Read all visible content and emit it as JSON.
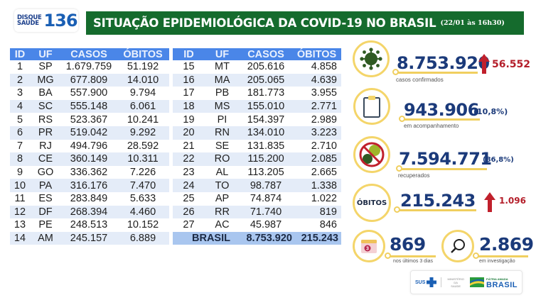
{
  "header": {
    "hotline_top": "DISQUE",
    "hotline_bottom": "SAÚDE",
    "hotline_number": "136",
    "title": "SITUAÇÃO EPIDEMIOLÓGICA DA COVID-19 NO BRASIL",
    "date": "(22/01 às 16h30)",
    "title_bg_color": "#156b2d"
  },
  "table": {
    "columns": [
      "ID",
      "UF",
      "CASOS",
      "ÓBITOS"
    ],
    "header_color": "#4a86e8",
    "left_rows": [
      {
        "id": "1",
        "uf": "SP",
        "casos": "1.679.759",
        "obitos": "51.192"
      },
      {
        "id": "2",
        "uf": "MG",
        "casos": "677.809",
        "obitos": "14.010"
      },
      {
        "id": "3",
        "uf": "BA",
        "casos": "557.900",
        "obitos": "9.794"
      },
      {
        "id": "4",
        "uf": "SC",
        "casos": "555.148",
        "obitos": "6.061"
      },
      {
        "id": "5",
        "uf": "RS",
        "casos": "523.367",
        "obitos": "10.241"
      },
      {
        "id": "6",
        "uf": "PR",
        "casos": "519.042",
        "obitos": "9.292"
      },
      {
        "id": "7",
        "uf": "RJ",
        "casos": "494.796",
        "obitos": "28.592"
      },
      {
        "id": "8",
        "uf": "CE",
        "casos": "360.149",
        "obitos": "10.311"
      },
      {
        "id": "9",
        "uf": "GO",
        "casos": "336.362",
        "obitos": "7.226"
      },
      {
        "id": "10",
        "uf": "PA",
        "casos": "316.176",
        "obitos": "7.470"
      },
      {
        "id": "11",
        "uf": "ES",
        "casos": "283.849",
        "obitos": "5.633"
      },
      {
        "id": "12",
        "uf": "DF",
        "casos": "268.394",
        "obitos": "4.460"
      },
      {
        "id": "13",
        "uf": "PE",
        "casos": "248.513",
        "obitos": "10.152"
      },
      {
        "id": "14",
        "uf": "AM",
        "casos": "245.157",
        "obitos": "6.889"
      }
    ],
    "right_rows": [
      {
        "id": "15",
        "uf": "MT",
        "casos": "205.616",
        "obitos": "4.858"
      },
      {
        "id": "16",
        "uf": "MA",
        "casos": "205.065",
        "obitos": "4.639"
      },
      {
        "id": "17",
        "uf": "PB",
        "casos": "181.773",
        "obitos": "3.955"
      },
      {
        "id": "18",
        "uf": "MS",
        "casos": "155.010",
        "obitos": "2.771"
      },
      {
        "id": "19",
        "uf": "PI",
        "casos": "154.397",
        "obitos": "2.989"
      },
      {
        "id": "20",
        "uf": "RN",
        "casos": "134.010",
        "obitos": "3.223"
      },
      {
        "id": "21",
        "uf": "SE",
        "casos": "131.835",
        "obitos": "2.710"
      },
      {
        "id": "22",
        "uf": "RO",
        "casos": "115.200",
        "obitos": "2.085"
      },
      {
        "id": "23",
        "uf": "AL",
        "casos": "113.205",
        "obitos": "2.665"
      },
      {
        "id": "24",
        "uf": "TO",
        "casos": "98.787",
        "obitos": "1.338"
      },
      {
        "id": "25",
        "uf": "AP",
        "casos": "74.874",
        "obitos": "1.022"
      },
      {
        "id": "26",
        "uf": "RR",
        "casos": "71.740",
        "obitos": "819"
      },
      {
        "id": "27",
        "uf": "AC",
        "casos": "45.987",
        "obitos": "846"
      }
    ],
    "total": {
      "label": "BRASIL",
      "casos": "8.753.920",
      "obitos": "215.243"
    }
  },
  "stats": {
    "confirmed": {
      "value": "8.753.920",
      "delta": "56.552",
      "caption": "casos confirmados",
      "icon": "virus-icon"
    },
    "monitoring": {
      "value": "943.906",
      "pct": "(10,8%)",
      "caption": "em acompanhamento",
      "icon": "clipboard-icon"
    },
    "recovered": {
      "value": "7.594.771",
      "pct": "(86,8%)",
      "caption": "recuperados",
      "icon": "no-virus-icon"
    },
    "deaths": {
      "badge": "ÓBITOS",
      "value": "215.243",
      "delta": "1.096"
    },
    "last3days": {
      "value": "869",
      "caption": "nos últimos 3 dias",
      "calendar_number": "3",
      "icon": "calendar-icon"
    },
    "investigation": {
      "value": "2.869",
      "caption": "em investigação",
      "icon": "magnifier-icon"
    }
  },
  "colors": {
    "ring": "#f4d56a",
    "number": "#1b3a7a",
    "delta": "#b41e2a"
  },
  "footer": {
    "sus": "SUS",
    "ministry_line1": "MINISTÉRIO DA",
    "ministry_line2": "SAÚDE",
    "brasil_small": "PÁTRIA AMADA",
    "brasil_big": "BRASIL"
  }
}
